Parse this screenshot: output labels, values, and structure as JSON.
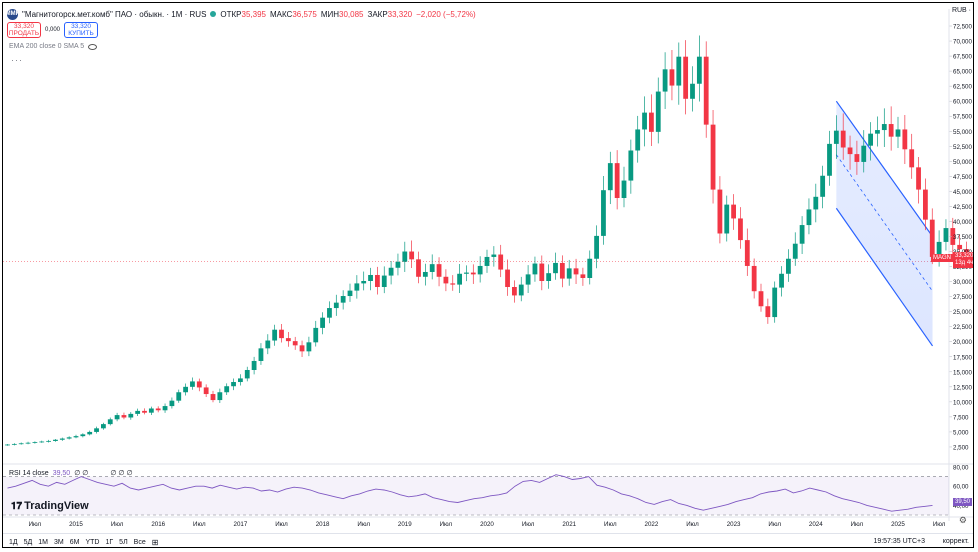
{
  "header": {
    "symbol_title": "\"Магнитогорск.мет.комб\" ПАО · обыкн. · 1М · RUS",
    "logo_text": "ММК",
    "ohlc": [
      {
        "label": "ОТКР",
        "value": "35,395"
      },
      {
        "label": "МАКС",
        "value": "36,575"
      },
      {
        "label": "МИН",
        "value": "30,085"
      },
      {
        "label": "ЗАКР",
        "value": "33,320"
      }
    ],
    "change": "−2,020 (−5,72%)",
    "currency": "RUB ·"
  },
  "trade": {
    "sell_price": "33,320",
    "sell_label": "ПРОДАТЬ",
    "spread": "0,000",
    "buy_price": "33,320",
    "buy_label": "КУПИТЬ"
  },
  "indicators": {
    "ema_label": "EMA 200 close 0 SMA 5",
    "rsi_label": "RSI 14 close",
    "rsi_value": "39,50",
    "rsi_flags": "∅ ∅",
    "rsi_flags2": "∅ ∅ ∅"
  },
  "price_tag": {
    "symbol": "MAGN",
    "price": "33,320",
    "countdown": "13д 4ч"
  },
  "rsi_tag": "39,50",
  "branding": "TradingView",
  "bottom": {
    "timeframes": [
      "1Д",
      "5Д",
      "1М",
      "3М",
      "6М",
      "YTD",
      "1Г",
      "5Л",
      "Все"
    ],
    "time": "19:57:35 UTC+3",
    "adjust": "коррект."
  },
  "chart_data": {
    "type": "candlestick",
    "interval": "1M",
    "y_ticks": [
      "72,500",
      "70,000",
      "67,500",
      "65,000",
      "62,500",
      "60,000",
      "57,500",
      "55,000",
      "52,500",
      "50,000",
      "47,500",
      "45,000",
      "42,500",
      "40,000",
      "37,500",
      "35,000",
      "32,500",
      "30,000",
      "27,500",
      "25,000",
      "22,500",
      "20,000",
      "17,500",
      "15,000",
      "12,500",
      "10,000",
      "7,500",
      "5,000",
      "2,500"
    ],
    "ylim": [
      0,
      74
    ],
    "x_ticks": [
      {
        "label": "Июл",
        "t": 2014.5
      },
      {
        "label": "2015",
        "t": 2015
      },
      {
        "label": "Июл",
        "t": 2015.5
      },
      {
        "label": "2016",
        "t": 2016
      },
      {
        "label": "Июл",
        "t": 2016.5
      },
      {
        "label": "2017",
        "t": 2017
      },
      {
        "label": "Июл",
        "t": 2017.5
      },
      {
        "label": "2018",
        "t": 2018
      },
      {
        "label": "Июл",
        "t": 2018.5
      },
      {
        "label": "2019",
        "t": 2019
      },
      {
        "label": "Июл",
        "t": 2019.5
      },
      {
        "label": "2020",
        "t": 2020
      },
      {
        "label": "Июл",
        "t": 2020.5
      },
      {
        "label": "2021",
        "t": 2021
      },
      {
        "label": "Июл",
        "t": 2021.5
      },
      {
        "label": "2022",
        "t": 2022
      },
      {
        "label": "Июл",
        "t": 2022.5
      },
      {
        "label": "2023",
        "t": 2023
      },
      {
        "label": "Июл",
        "t": 2023.5
      },
      {
        "label": "2024",
        "t": 2024
      },
      {
        "label": "Июл",
        "t": 2024.5
      },
      {
        "label": "2025",
        "t": 2025
      },
      {
        "label": "Июл",
        "t": 2025.5
      }
    ],
    "closes_monthly": [
      2.9,
      3.0,
      3.1,
      3.2,
      3.3,
      3.4,
      3.5,
      3.7,
      3.9,
      4.1,
      4.3,
      4.6,
      5.0,
      5.6,
      6.3,
      7.1,
      7.8,
      7.4,
      8.0,
      8.5,
      8.2,
      8.9,
      8.6,
      9.3,
      10.2,
      11.6,
      12.5,
      13.4,
      12.4,
      11.3,
      10.3,
      11.6,
      12.6,
      13.3,
      13.9,
      15.3,
      16.8,
      18.9,
      20.2,
      22.0,
      20.6,
      20.1,
      19.4,
      18.4,
      19.9,
      22.3,
      24.0,
      25.6,
      26.5,
      27.6,
      28.5,
      29.7,
      30.1,
      31.1,
      29.1,
      31.0,
      32.3,
      33.3,
      35.0,
      33.7,
      30.8,
      31.6,
      32.9,
      30.8,
      29.7,
      29.5,
      31.3,
      31.5,
      31.2,
      32.6,
      34.1,
      34.5,
      32.0,
      29.1,
      27.7,
      29.5,
      31.2,
      33.0,
      30.1,
      31.4,
      33.1,
      30.5,
      32.2,
      31.2,
      30.6,
      33.8,
      37.6,
      45.2,
      49.7,
      43.9,
      46.8,
      51.8,
      55.3,
      58.1,
      54.9,
      61.6,
      65.3,
      62.6,
      67.4,
      60.4,
      62.9,
      67.4,
      56.1,
      45.3,
      38.0,
      42.8,
      40.5,
      36.9,
      32.6,
      28.4,
      25.9,
      24.1,
      29.0,
      31.3,
      33.8,
      36.3,
      39.4,
      42.0,
      44.1,
      47.6,
      52.9,
      55.1,
      52.3,
      51.2,
      49.9,
      52.6,
      54.6,
      55.2,
      56.2,
      54.1,
      55.3,
      52.0,
      49.0,
      45.3,
      40.3,
      34.1,
      36.6,
      38.9,
      36.1,
      35.4,
      33.3
    ],
    "channel": {
      "upper_start": [
        2024.25,
        60.0
      ],
      "upper_end": [
        2025.42,
        37.5
      ],
      "lower_start": [
        2024.25,
        42.2
      ],
      "lower_end": [
        2025.42,
        19.3
      ]
    },
    "rsi": {
      "ylim": [
        30,
        80
      ],
      "y_ticks": [
        "80,00",
        "60,00",
        "40,00"
      ],
      "levels": [
        70,
        30
      ],
      "values": [
        58,
        60,
        63,
        66,
        62,
        60,
        64,
        62,
        66,
        70,
        67,
        64,
        62,
        60,
        63,
        58,
        56,
        58,
        60,
        62,
        58,
        56,
        58,
        60,
        60,
        58,
        61,
        59,
        57,
        59,
        58,
        55,
        56,
        54,
        57,
        59,
        58,
        56,
        53,
        51,
        49,
        47,
        50,
        52,
        55,
        57,
        56,
        54,
        51,
        49,
        50,
        52,
        48,
        46,
        44,
        43,
        45,
        47,
        48,
        50,
        51,
        53,
        60,
        65,
        66,
        64,
        68,
        72,
        70,
        67,
        68,
        70,
        61,
        59,
        56,
        52,
        50,
        47,
        43,
        41,
        44,
        46,
        42,
        40,
        37,
        35,
        37,
        39,
        41,
        44,
        46,
        48,
        52,
        54,
        55,
        57,
        53,
        55,
        58,
        56,
        54,
        50,
        47,
        45,
        43,
        40,
        38,
        36,
        34,
        35,
        36,
        38,
        39,
        40
      ]
    }
  }
}
